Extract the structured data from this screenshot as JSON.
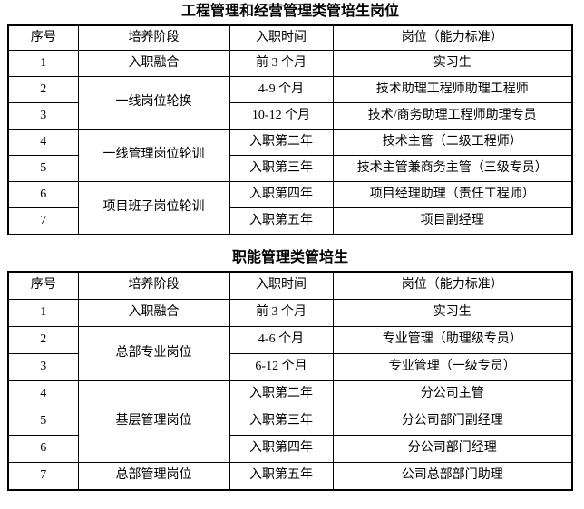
{
  "colors": {
    "background": "#ffffff",
    "border": "#000000",
    "text": "#000000"
  },
  "tables": [
    {
      "title": "工程管理和经营管理类管培生岗位",
      "headers": [
        "序号",
        "培养阶段",
        "入职时间",
        "岗位（能力标准）"
      ],
      "rows": [
        {
          "no": "1",
          "stage": "入职融合",
          "stage_rowspan": 1,
          "time": "前 3 个月",
          "position": "实习生"
        },
        {
          "no": "2",
          "stage": "一线岗位轮换",
          "stage_rowspan": 2,
          "time": "4-9 个月",
          "position": "技术助理工程师助理工程师"
        },
        {
          "no": "3",
          "time": "10-12 个月",
          "position": "技术/商务助理工程师助理专员"
        },
        {
          "no": "4",
          "stage": "一线管理岗位轮训",
          "stage_rowspan": 2,
          "time": "入职第二年",
          "position": "技术主管（二级工程师）"
        },
        {
          "no": "5",
          "time": "入职第三年",
          "position": "技术主管兼商务主管（三级专员）"
        },
        {
          "no": "6",
          "stage": "项目班子岗位轮训",
          "stage_rowspan": 2,
          "time": "入职第四年",
          "position": "项目经理助理（责任工程师）"
        },
        {
          "no": "7",
          "time": "入职第五年",
          "position": "项目副经理"
        }
      ]
    },
    {
      "title": "职能管理类管培生",
      "headers": [
        "序号",
        "培养阶段",
        "入职时间",
        "岗位（能力标准）"
      ],
      "rows": [
        {
          "no": "1",
          "stage": "入职融合",
          "stage_rowspan": 1,
          "time": "前 3 个月",
          "position": "实习生"
        },
        {
          "no": "2",
          "stage": "总部专业岗位",
          "stage_rowspan": 2,
          "time": "4-6 个月",
          "position": "专业管理（助理级专员）"
        },
        {
          "no": "3",
          "time": "6-12 个月",
          "position": "专业管理（一级专员）"
        },
        {
          "no": "4",
          "stage": "基层管理岗位",
          "stage_rowspan": 3,
          "time": "入职第二年",
          "position": "分公司主管"
        },
        {
          "no": "5",
          "time": "入职第三年",
          "position": "分公司部门副经理"
        },
        {
          "no": "6",
          "time": "入职第四年",
          "position": "分公司部门经理"
        },
        {
          "no": "7",
          "stage": "总部管理岗位",
          "stage_rowspan": 1,
          "time": "入职第五年",
          "position": "公司总部部门助理"
        }
      ]
    }
  ]
}
